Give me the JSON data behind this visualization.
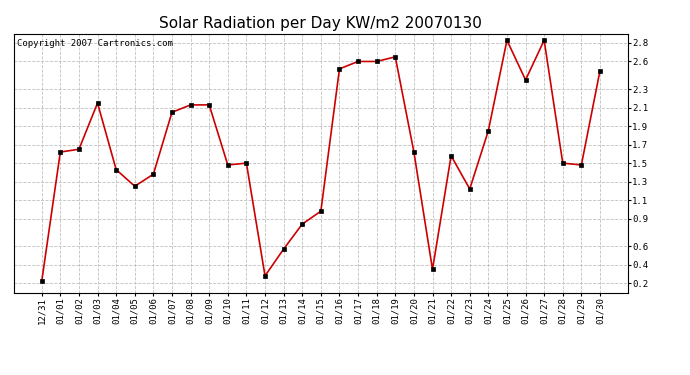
{
  "title": "Solar Radiation per Day KW/m2 20070130",
  "copyright": "Copyright 2007 Cartronics.com",
  "labels": [
    "12/31",
    "01/01",
    "01/02",
    "01/03",
    "01/04",
    "01/05",
    "01/06",
    "01/07",
    "01/08",
    "01/09",
    "01/10",
    "01/11",
    "01/12",
    "01/13",
    "01/14",
    "01/15",
    "01/16",
    "01/17",
    "01/18",
    "01/19",
    "01/20",
    "01/21",
    "01/22",
    "01/23",
    "01/24",
    "01/25",
    "01/26",
    "01/27",
    "01/28",
    "01/29",
    "01/30"
  ],
  "values": [
    0.22,
    1.62,
    1.65,
    2.15,
    1.43,
    1.25,
    1.38,
    2.05,
    2.13,
    2.13,
    1.48,
    1.5,
    0.28,
    0.57,
    0.84,
    0.98,
    2.52,
    2.6,
    2.6,
    2.65,
    1.62,
    0.35,
    1.58,
    1.22,
    1.85,
    2.83,
    2.4,
    2.83,
    1.5,
    1.48,
    2.5
  ],
  "line_color": "#cc0000",
  "marker_color": "#000000",
  "bg_color": "#ffffff",
  "grid_color": "#c0c0c0",
  "ylim": [
    0.1,
    2.9
  ],
  "yticks": [
    0.2,
    0.4,
    0.6,
    0.9,
    1.1,
    1.3,
    1.5,
    1.7,
    1.9,
    2.1,
    2.3,
    2.6,
    2.8
  ],
  "title_fontsize": 11,
  "tick_fontsize": 6.5,
  "copyright_fontsize": 6.5
}
